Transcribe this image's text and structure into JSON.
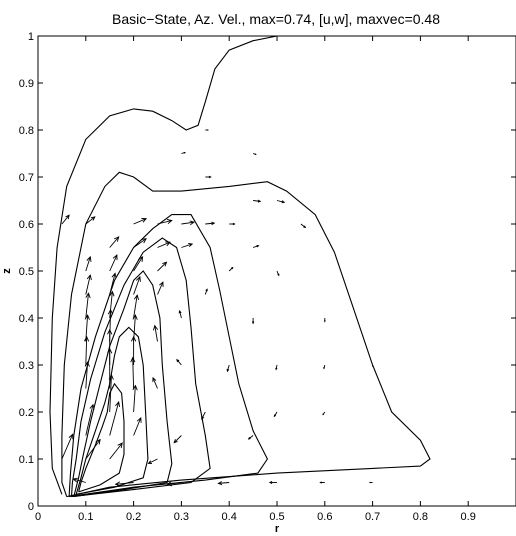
{
  "chart_data": {
    "type": "contour",
    "title": "Basic−State, Az. Vel., max=0.74, [u,w], maxvec=0.48",
    "xlabel": "r",
    "ylabel": "z",
    "xlim": [
      0,
      1
    ],
    "ylim": [
      0,
      1
    ],
    "x_ticks": [
      0,
      0.1,
      0.2,
      0.3,
      0.4,
      0.5,
      0.6,
      0.7,
      0.8,
      0.9
    ],
    "x_tick_labels": [
      "0",
      "0.1",
      "0.2",
      "0.3",
      "0.4",
      "0.5",
      "0.6",
      "0.7",
      "0.8",
      "0.9"
    ],
    "y_ticks": [
      0,
      0.1,
      0.2,
      0.3,
      0.4,
      0.5,
      0.6,
      0.7,
      0.8,
      0.9,
      1
    ],
    "y_tick_labels": [
      "0",
      "0.1",
      "0.2",
      "0.3",
      "0.4",
      "0.5",
      "0.6",
      "0.7",
      "0.8",
      "0.9",
      "1"
    ],
    "grid": false,
    "max_azimuthal_velocity": 0.74,
    "max_vector_magnitude": 0.48,
    "contour_lines": [
      {
        "points": [
          [
            0.05,
            0.025
          ],
          [
            0.03,
            0.08
          ],
          [
            0.025,
            0.2
          ],
          [
            0.03,
            0.4
          ],
          [
            0.04,
            0.55
          ],
          [
            0.06,
            0.68
          ],
          [
            0.1,
            0.78
          ],
          [
            0.15,
            0.83
          ],
          [
            0.2,
            0.845
          ],
          [
            0.24,
            0.84
          ],
          [
            0.28,
            0.82
          ],
          [
            0.31,
            0.8
          ],
          [
            0.335,
            0.81
          ],
          [
            0.35,
            0.86
          ],
          [
            0.37,
            0.93
          ],
          [
            0.4,
            0.97
          ],
          [
            0.45,
            0.99
          ],
          [
            0.5,
            1.0
          ]
        ]
      },
      {
        "points": [
          [
            0.06,
            0.02
          ],
          [
            0.15,
            0.04
          ],
          [
            0.3,
            0.055
          ],
          [
            0.5,
            0.07
          ],
          [
            0.7,
            0.08
          ],
          [
            0.8,
            0.085
          ],
          [
            0.82,
            0.1
          ],
          [
            0.8,
            0.14
          ],
          [
            0.74,
            0.2
          ],
          [
            0.7,
            0.3
          ],
          [
            0.66,
            0.42
          ],
          [
            0.62,
            0.54
          ],
          [
            0.58,
            0.62
          ],
          [
            0.52,
            0.67
          ],
          [
            0.48,
            0.69
          ],
          [
            0.4,
            0.68
          ],
          [
            0.3,
            0.67
          ],
          [
            0.24,
            0.67
          ],
          [
            0.2,
            0.7
          ],
          [
            0.17,
            0.71
          ],
          [
            0.14,
            0.68
          ],
          [
            0.1,
            0.6
          ],
          [
            0.07,
            0.45
          ],
          [
            0.055,
            0.3
          ],
          [
            0.05,
            0.15
          ],
          [
            0.05,
            0.05
          ],
          [
            0.06,
            0.02
          ]
        ]
      },
      {
        "points": [
          [
            0.065,
            0.02
          ],
          [
            0.2,
            0.04
          ],
          [
            0.35,
            0.055
          ],
          [
            0.46,
            0.07
          ],
          [
            0.48,
            0.1
          ],
          [
            0.45,
            0.16
          ],
          [
            0.42,
            0.26
          ],
          [
            0.4,
            0.36
          ],
          [
            0.38,
            0.46
          ],
          [
            0.36,
            0.55
          ],
          [
            0.32,
            0.62
          ],
          [
            0.28,
            0.62
          ],
          [
            0.24,
            0.59
          ],
          [
            0.2,
            0.55
          ],
          [
            0.16,
            0.48
          ],
          [
            0.12,
            0.36
          ],
          [
            0.09,
            0.25
          ],
          [
            0.075,
            0.15
          ],
          [
            0.068,
            0.07
          ],
          [
            0.065,
            0.02
          ]
        ]
      },
      {
        "points": [
          [
            0.07,
            0.02
          ],
          [
            0.2,
            0.035
          ],
          [
            0.32,
            0.05
          ],
          [
            0.36,
            0.08
          ],
          [
            0.35,
            0.15
          ],
          [
            0.33,
            0.26
          ],
          [
            0.32,
            0.38
          ],
          [
            0.31,
            0.48
          ],
          [
            0.29,
            0.55
          ],
          [
            0.26,
            0.57
          ],
          [
            0.22,
            0.54
          ],
          [
            0.18,
            0.47
          ],
          [
            0.14,
            0.37
          ],
          [
            0.11,
            0.27
          ],
          [
            0.09,
            0.18
          ],
          [
            0.08,
            0.1
          ],
          [
            0.072,
            0.05
          ],
          [
            0.07,
            0.02
          ]
        ]
      },
      {
        "points": [
          [
            0.075,
            0.02
          ],
          [
            0.18,
            0.035
          ],
          [
            0.27,
            0.05
          ],
          [
            0.28,
            0.09
          ],
          [
            0.27,
            0.18
          ],
          [
            0.26,
            0.3
          ],
          [
            0.255,
            0.4
          ],
          [
            0.24,
            0.47
          ],
          [
            0.22,
            0.5
          ],
          [
            0.2,
            0.48
          ],
          [
            0.18,
            0.42
          ],
          [
            0.15,
            0.34
          ],
          [
            0.13,
            0.26
          ],
          [
            0.11,
            0.18
          ],
          [
            0.095,
            0.11
          ],
          [
            0.085,
            0.06
          ],
          [
            0.075,
            0.02
          ]
        ]
      },
      {
        "points": [
          [
            0.08,
            0.025
          ],
          [
            0.16,
            0.04
          ],
          [
            0.22,
            0.06
          ],
          [
            0.23,
            0.1
          ],
          [
            0.225,
            0.2
          ],
          [
            0.22,
            0.3
          ],
          [
            0.21,
            0.36
          ],
          [
            0.19,
            0.38
          ],
          [
            0.17,
            0.36
          ],
          [
            0.16,
            0.32
          ],
          [
            0.15,
            0.26
          ],
          [
            0.14,
            0.22
          ],
          [
            0.12,
            0.16
          ],
          [
            0.1,
            0.1
          ],
          [
            0.09,
            0.06
          ],
          [
            0.08,
            0.025
          ]
        ]
      },
      {
        "points": [
          [
            0.085,
            0.03
          ],
          [
            0.13,
            0.045
          ],
          [
            0.17,
            0.07
          ],
          [
            0.18,
            0.11
          ],
          [
            0.18,
            0.18
          ],
          [
            0.175,
            0.24
          ],
          [
            0.16,
            0.26
          ],
          [
            0.15,
            0.24
          ],
          [
            0.145,
            0.2
          ],
          [
            0.135,
            0.17
          ],
          [
            0.12,
            0.13
          ],
          [
            0.1,
            0.08
          ],
          [
            0.09,
            0.05
          ],
          [
            0.085,
            0.03
          ]
        ]
      }
    ],
    "vector_arrows": [
      {
        "x": 0.05,
        "y": 0.1,
        "u": 0.12,
        "w": 0.28
      },
      {
        "x": 0.1,
        "y": 0.1,
        "u": 0.16,
        "w": 0.22
      },
      {
        "x": 0.15,
        "y": 0.1,
        "u": 0.14,
        "w": 0.18
      },
      {
        "x": 0.1,
        "y": 0.15,
        "u": 0.08,
        "w": 0.35
      },
      {
        "x": 0.15,
        "y": 0.15,
        "u": 0.1,
        "w": 0.38
      },
      {
        "x": 0.2,
        "y": 0.15,
        "u": 0.08,
        "w": 0.2
      },
      {
        "x": 0.15,
        "y": 0.2,
        "u": 0.02,
        "w": 0.42
      },
      {
        "x": 0.2,
        "y": 0.2,
        "u": 0.02,
        "w": 0.3
      },
      {
        "x": 0.1,
        "y": 0.25,
        "u": 0.02,
        "w": 0.3
      },
      {
        "x": 0.15,
        "y": 0.25,
        "u": 0.0,
        "w": 0.45
      },
      {
        "x": 0.2,
        "y": 0.25,
        "u": -0.01,
        "w": 0.35
      },
      {
        "x": 0.1,
        "y": 0.3,
        "u": 0.01,
        "w": 0.32
      },
      {
        "x": 0.15,
        "y": 0.3,
        "u": 0.0,
        "w": 0.4
      },
      {
        "x": 0.2,
        "y": 0.3,
        "u": 0.0,
        "w": 0.32
      },
      {
        "x": 0.1,
        "y": 0.35,
        "u": 0.02,
        "w": 0.3
      },
      {
        "x": 0.15,
        "y": 0.35,
        "u": 0.01,
        "w": 0.36
      },
      {
        "x": 0.2,
        "y": 0.35,
        "u": 0.02,
        "w": 0.3
      },
      {
        "x": 0.1,
        "y": 0.4,
        "u": 0.03,
        "w": 0.28
      },
      {
        "x": 0.15,
        "y": 0.4,
        "u": 0.03,
        "w": 0.3
      },
      {
        "x": 0.2,
        "y": 0.4,
        "u": 0.04,
        "w": 0.26
      },
      {
        "x": 0.1,
        "y": 0.45,
        "u": 0.05,
        "w": 0.22
      },
      {
        "x": 0.15,
        "y": 0.45,
        "u": 0.06,
        "w": 0.24
      },
      {
        "x": 0.2,
        "y": 0.45,
        "u": 0.07,
        "w": 0.2
      },
      {
        "x": 0.25,
        "y": 0.45,
        "u": 0.06,
        "w": 0.14
      },
      {
        "x": 0.1,
        "y": 0.5,
        "u": 0.05,
        "w": 0.16
      },
      {
        "x": 0.15,
        "y": 0.5,
        "u": 0.08,
        "w": 0.18
      },
      {
        "x": 0.2,
        "y": 0.5,
        "u": 0.1,
        "w": 0.16
      },
      {
        "x": 0.25,
        "y": 0.5,
        "u": 0.1,
        "w": 0.1
      },
      {
        "x": 0.15,
        "y": 0.55,
        "u": 0.1,
        "w": 0.12
      },
      {
        "x": 0.2,
        "y": 0.55,
        "u": 0.14,
        "w": 0.1
      },
      {
        "x": 0.25,
        "y": 0.55,
        "u": 0.14,
        "w": 0.06
      },
      {
        "x": 0.3,
        "y": 0.55,
        "u": 0.12,
        "w": 0.04
      },
      {
        "x": 0.2,
        "y": 0.6,
        "u": 0.14,
        "w": 0.06
      },
      {
        "x": 0.25,
        "y": 0.6,
        "u": 0.16,
        "w": 0.04
      },
      {
        "x": 0.3,
        "y": 0.6,
        "u": 0.14,
        "w": 0.02
      },
      {
        "x": 0.35,
        "y": 0.6,
        "u": 0.1,
        "w": 0.01
      },
      {
        "x": 0.05,
        "y": 0.6,
        "u": 0.08,
        "w": 0.1
      },
      {
        "x": 0.1,
        "y": 0.6,
        "u": 0.1,
        "w": 0.08
      },
      {
        "x": 0.25,
        "y": 0.35,
        "u": -0.03,
        "w": 0.18
      },
      {
        "x": 0.25,
        "y": 0.25,
        "u": -0.05,
        "w": 0.12
      },
      {
        "x": 0.3,
        "y": 0.3,
        "u": -0.05,
        "w": 0.06
      },
      {
        "x": 0.3,
        "y": 0.4,
        "u": -0.02,
        "w": 0.08
      },
      {
        "x": 0.35,
        "y": 0.45,
        "u": 0.02,
        "w": 0.06
      },
      {
        "x": 0.4,
        "y": 0.5,
        "u": 0.04,
        "w": 0.04
      },
      {
        "x": 0.45,
        "y": 0.55,
        "u": 0.06,
        "w": 0.02
      },
      {
        "x": 0.4,
        "y": 0.6,
        "u": 0.06,
        "w": 0.0
      },
      {
        "x": 0.45,
        "y": 0.65,
        "u": 0.08,
        "w": -0.01
      },
      {
        "x": 0.5,
        "y": 0.65,
        "u": 0.08,
        "w": -0.02
      },
      {
        "x": 0.55,
        "y": 0.6,
        "u": 0.05,
        "w": -0.04
      },
      {
        "x": 0.5,
        "y": 0.5,
        "u": 0.02,
        "w": -0.05
      },
      {
        "x": 0.45,
        "y": 0.4,
        "u": 0.0,
        "w": -0.06
      },
      {
        "x": 0.4,
        "y": 0.3,
        "u": -0.02,
        "w": -0.07
      },
      {
        "x": 0.35,
        "y": 0.2,
        "u": -0.04,
        "w": -0.08
      },
      {
        "x": 0.3,
        "y": 0.15,
        "u": -0.08,
        "w": -0.08
      },
      {
        "x": 0.25,
        "y": 0.1,
        "u": -0.1,
        "w": -0.05
      },
      {
        "x": 0.3,
        "y": 0.05,
        "u": -0.16,
        "w": -0.02
      },
      {
        "x": 0.2,
        "y": 0.05,
        "u": -0.2,
        "w": -0.02
      },
      {
        "x": 0.1,
        "y": 0.05,
        "u": -0.14,
        "w": 0.04
      },
      {
        "x": 0.4,
        "y": 0.05,
        "u": -0.12,
        "w": -0.01
      },
      {
        "x": 0.5,
        "y": 0.05,
        "u": -0.08,
        "w": 0.0
      },
      {
        "x": 0.6,
        "y": 0.05,
        "u": -0.05,
        "w": 0.0
      },
      {
        "x": 0.7,
        "y": 0.05,
        "u": -0.03,
        "w": 0.0
      },
      {
        "x": 0.6,
        "y": 0.4,
        "u": 0.0,
        "w": -0.04
      },
      {
        "x": 0.6,
        "y": 0.3,
        "u": -0.01,
        "w": -0.04
      },
      {
        "x": 0.6,
        "y": 0.2,
        "u": -0.02,
        "w": -0.03
      },
      {
        "x": 0.7,
        "y": 0.3,
        "u": 0.0,
        "w": -0.02
      },
      {
        "x": 0.5,
        "y": 0.3,
        "u": -0.01,
        "w": -0.05
      },
      {
        "x": 0.5,
        "y": 0.2,
        "u": -0.03,
        "w": -0.05
      },
      {
        "x": 0.45,
        "y": 0.15,
        "u": -0.05,
        "w": -0.04
      },
      {
        "x": 0.35,
        "y": 0.7,
        "u": 0.06,
        "w": 0.0
      },
      {
        "x": 0.3,
        "y": 0.75,
        "u": 0.04,
        "w": 0.01
      },
      {
        "x": 0.35,
        "y": 0.8,
        "u": 0.03,
        "w": 0.0
      },
      {
        "x": 0.45,
        "y": 0.75,
        "u": 0.03,
        "w": -0.01
      }
    ]
  }
}
